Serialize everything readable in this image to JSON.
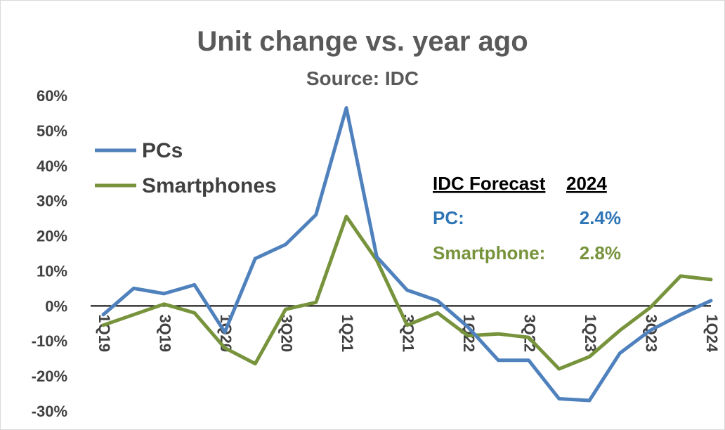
{
  "chart_data": {
    "type": "line",
    "title": "Unit change vs. year ago",
    "subtitle": "Source: IDC",
    "x": [
      "1Q19",
      "2Q19",
      "3Q19",
      "4Q19",
      "1Q20",
      "2Q20",
      "3Q20",
      "4Q20",
      "1Q21",
      "2Q21",
      "3Q21",
      "4Q21",
      "1Q22",
      "2Q22",
      "3Q22",
      "4Q22",
      "1Q23",
      "2Q23",
      "3Q23",
      "4Q23",
      "1Q24"
    ],
    "x_tick_labels": [
      "1Q19",
      "3Q19",
      "1Q20",
      "3Q20",
      "1Q21",
      "3Q21",
      "1Q22",
      "3Q22",
      "1Q23",
      "3Q23",
      "1Q24"
    ],
    "y_tick_labels": [
      "60%",
      "50%",
      "40%",
      "30%",
      "20%",
      "10%",
      "0%",
      "-10%",
      "-20%",
      "-30%"
    ],
    "ylim": [
      -30,
      60
    ],
    "series": [
      {
        "name": "PCs",
        "color": "#4f81bd",
        "values": [
          -2.5,
          5,
          3.5,
          6,
          -7.5,
          13.5,
          17.5,
          26,
          56.5,
          14,
          4.5,
          1.5,
          -6,
          -15.5,
          -15.5,
          -26.5,
          -27,
          -13.5,
          -7,
          -2.5,
          1.5
        ]
      },
      {
        "name": "Smartphones",
        "color": "#77933c",
        "values": [
          -5.5,
          -2.5,
          0.5,
          -2,
          -12,
          -16.5,
          -1,
          1,
          25.5,
          13,
          -5.5,
          -2,
          -8.5,
          -8,
          -9,
          -18,
          -14.5,
          -7,
          -0.5,
          8.5,
          7.5
        ]
      }
    ],
    "legend_position": "top-left",
    "grid": false
  },
  "forecast_box": {
    "header_label": "IDC Forecast",
    "header_year": "2024",
    "pc_label": "PC:",
    "pc_value": "2.4%",
    "smartphone_label": "Smartphone:",
    "smartphone_value": "2.8%",
    "pc_color": "#2e75b6",
    "smartphone_color": "#77933c"
  }
}
